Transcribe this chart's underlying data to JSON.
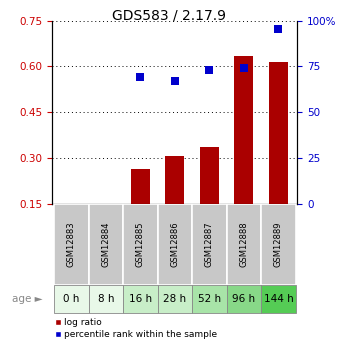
{
  "title": "GDS583 / 2.17.9",
  "samples": [
    "GSM12883",
    "GSM12884",
    "GSM12885",
    "GSM12886",
    "GSM12887",
    "GSM12888",
    "GSM12889"
  ],
  "ages": [
    "0 h",
    "8 h",
    "16 h",
    "28 h",
    "52 h",
    "96 h",
    "144 h"
  ],
  "age_colors": [
    "#e8f8e8",
    "#e8f8e8",
    "#c8eec8",
    "#c8eec8",
    "#a8e4a8",
    "#88d888",
    "#55cc55"
  ],
  "log_ratio": [
    0.0,
    0.0,
    0.265,
    0.305,
    0.335,
    0.635,
    0.615
  ],
  "percentile_rank_pct": [
    0.0,
    0.0,
    69.0,
    67.0,
    73.0,
    74.0,
    95.5
  ],
  "ylim_left": [
    0.15,
    0.75
  ],
  "ylim_right": [
    0,
    100
  ],
  "yticks_left": [
    0.15,
    0.3,
    0.45,
    0.6,
    0.75
  ],
  "yticks_right": [
    0,
    25,
    50,
    75,
    100
  ],
  "bar_color": "#aa0000",
  "dot_color": "#0000cc",
  "left_axis_color": "#cc0000",
  "right_axis_color": "#0000cc",
  "background_color": "#ffffff",
  "sample_box_color": "#c8c8c8",
  "bar_width": 0.55,
  "dot_size": 30,
  "title_fontsize": 10,
  "tick_fontsize": 7.5,
  "sample_fontsize": 6,
  "age_fontsize": 7.5
}
